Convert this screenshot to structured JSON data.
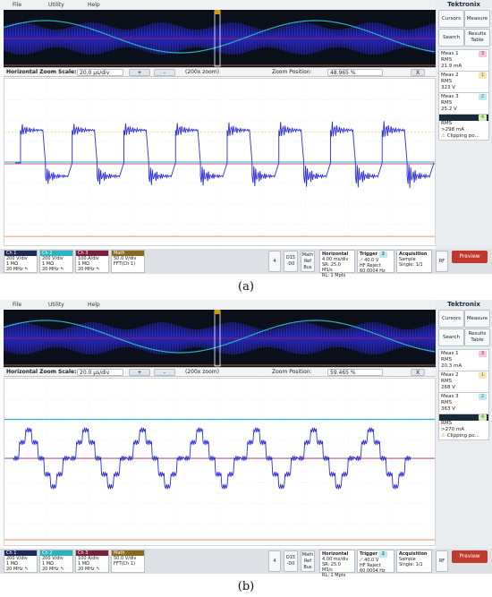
{
  "panels": [
    {
      "id": "a",
      "caption": "(a)",
      "menu": [
        "File",
        "Utility",
        "Help"
      ],
      "brand": "Tektronix",
      "side_buttons": [
        {
          "label": "Cursors"
        },
        {
          "label": "Measure"
        },
        {
          "label": "Search"
        },
        {
          "label": "Results\nTable"
        }
      ],
      "measurements": [
        {
          "title": "Meas 1",
          "badge": "3",
          "badge_color": "#c2185b",
          "type": "RMS",
          "value": "21.9 mA",
          "note": ""
        },
        {
          "title": "Meas 2",
          "badge": "1",
          "badge_color": "#c9a227",
          "type": "RMS",
          "value": "323 V",
          "note": ""
        },
        {
          "title": "Meas 3",
          "badge": "2",
          "badge_color": "#2bb3c0",
          "type": "RMS",
          "value": "25.2 V",
          "note": ""
        },
        {
          "title": "",
          "badge": "4",
          "badge_color": "#8bc34a",
          "type": "RMS",
          "value": ">298 mA",
          "note": "Clipping po..."
        }
      ],
      "zoom": {
        "label": "Horizontal Zoom Scale:",
        "scale": "20.0 µs/div",
        "plus": "+",
        "minus": "-",
        "zoom_factor": "(200x zoom)",
        "position_label": "Zoom Position:",
        "position": "48.965 %",
        "close": "X"
      },
      "channels": [
        {
          "tag": "Ch 1",
          "color": "#1e2a5a",
          "v": "200 V/div",
          "imp": "1 MΩ",
          "bw": "20 MHz ↰"
        },
        {
          "tag": "Ch 2",
          "color": "#2bb3c0",
          "v": "200 V/div",
          "imp": "1 MΩ",
          "bw": "20 MHz ↰"
        },
        {
          "tag": "Ch 3",
          "color": "#7a1f3d",
          "v": "100 A/div",
          "imp": "1 MΩ",
          "bw": "20 MHz ↰"
        },
        {
          "tag": "Math",
          "color": "#8a6a1a",
          "v": "50.0 V/div",
          "imp": "FFT(Ch 1)",
          "bw": ""
        }
      ],
      "buttons": {
        "four": "4",
        "d15": "D15\n-D0",
        "math_ref": "Math\nRef\nBus",
        "rf": "RF",
        "preview": "Preview"
      },
      "horizontal": {
        "title": "Horizontal",
        "l1": "4.00 ms/div",
        "l2": "SR: 25.0 MS/s",
        "l3": "RL: 1 Mpts"
      },
      "trigger": {
        "title": "Trigger",
        "badge": "2",
        "l1": "40.0 V",
        "l2": "HF Reject",
        "l3": "60.0004 Hz"
      },
      "acquisition": {
        "title": "Acquisition",
        "l1": "Sample",
        "l2": "Single: 1/1"
      },
      "colors": {
        "ch1": "#2b2bd9",
        "ch2": "#2bb3c0",
        "ch3": "#b01e5a",
        "math": "#e07a50"
      }
    },
    {
      "id": "b",
      "caption": "(b)",
      "menu": [
        "File",
        "Utility",
        "Help"
      ],
      "brand": "Tektronix",
      "side_buttons": [
        {
          "label": "Cursors"
        },
        {
          "label": "Measure"
        },
        {
          "label": "Search"
        },
        {
          "label": "Results\nTable"
        }
      ],
      "measurements": [
        {
          "title": "Meas 1",
          "badge": "3",
          "badge_color": "#c2185b",
          "type": "RMS",
          "value": "20.3 mA",
          "note": ""
        },
        {
          "title": "Meas 2",
          "badge": "1",
          "badge_color": "#c9a227",
          "type": "RMS",
          "value": "268 V",
          "note": ""
        },
        {
          "title": "Meas 3",
          "badge": "2",
          "badge_color": "#2bb3c0",
          "type": "RMS",
          "value": "363 V",
          "note": ""
        },
        {
          "title": "",
          "badge": "4",
          "badge_color": "#8bc34a",
          "type": "RMS",
          "value": ">270 mA",
          "note": "Clipping po..."
        }
      ],
      "zoom": {
        "label": "Horizontal Zoom Scale:",
        "scale": "20.0 µs/div",
        "plus": "+",
        "minus": "-",
        "zoom_factor": "(200x zoom)",
        "position_label": "Zoom Position:",
        "position": "59.465 %",
        "close": "X"
      },
      "channels": [
        {
          "tag": "Ch 1",
          "color": "#1e2a5a",
          "v": "200 V/div",
          "imp": "1 MΩ",
          "bw": "20 MHz ↰"
        },
        {
          "tag": "Ch 2",
          "color": "#2bb3c0",
          "v": "200 V/div",
          "imp": "1 MΩ",
          "bw": "20 MHz ↰"
        },
        {
          "tag": "Ch 3",
          "color": "#7a1f3d",
          "v": "100 A/div",
          "imp": "1 MΩ",
          "bw": "20 MHz ↰"
        },
        {
          "tag": "Math",
          "color": "#8a6a1a",
          "v": "50.0 V/div",
          "imp": "FFT(Ch 1)",
          "bw": ""
        }
      ],
      "buttons": {
        "four": "4",
        "d15": "D15\n-D0",
        "math_ref": "Math\nRef\nBus",
        "rf": "RF",
        "preview": "Preview"
      },
      "horizontal": {
        "title": "Horizontal",
        "l1": "4.00 ms/div",
        "l2": "SR: 25.0 MS/s",
        "l3": "RL: 1 Mpts"
      },
      "trigger": {
        "title": "Trigger",
        "badge": "2",
        "l1": "40.0 V",
        "l2": "HF Reject",
        "l3": "60.0004 Hz"
      },
      "acquisition": {
        "title": "Acquisition",
        "l1": "Sample",
        "l2": "Single: 1/1"
      },
      "colors": {
        "ch1": "#2b2bd9",
        "ch2": "#2bb3c0",
        "ch3": "#b01e5a",
        "math": "#e07a50"
      }
    }
  ]
}
